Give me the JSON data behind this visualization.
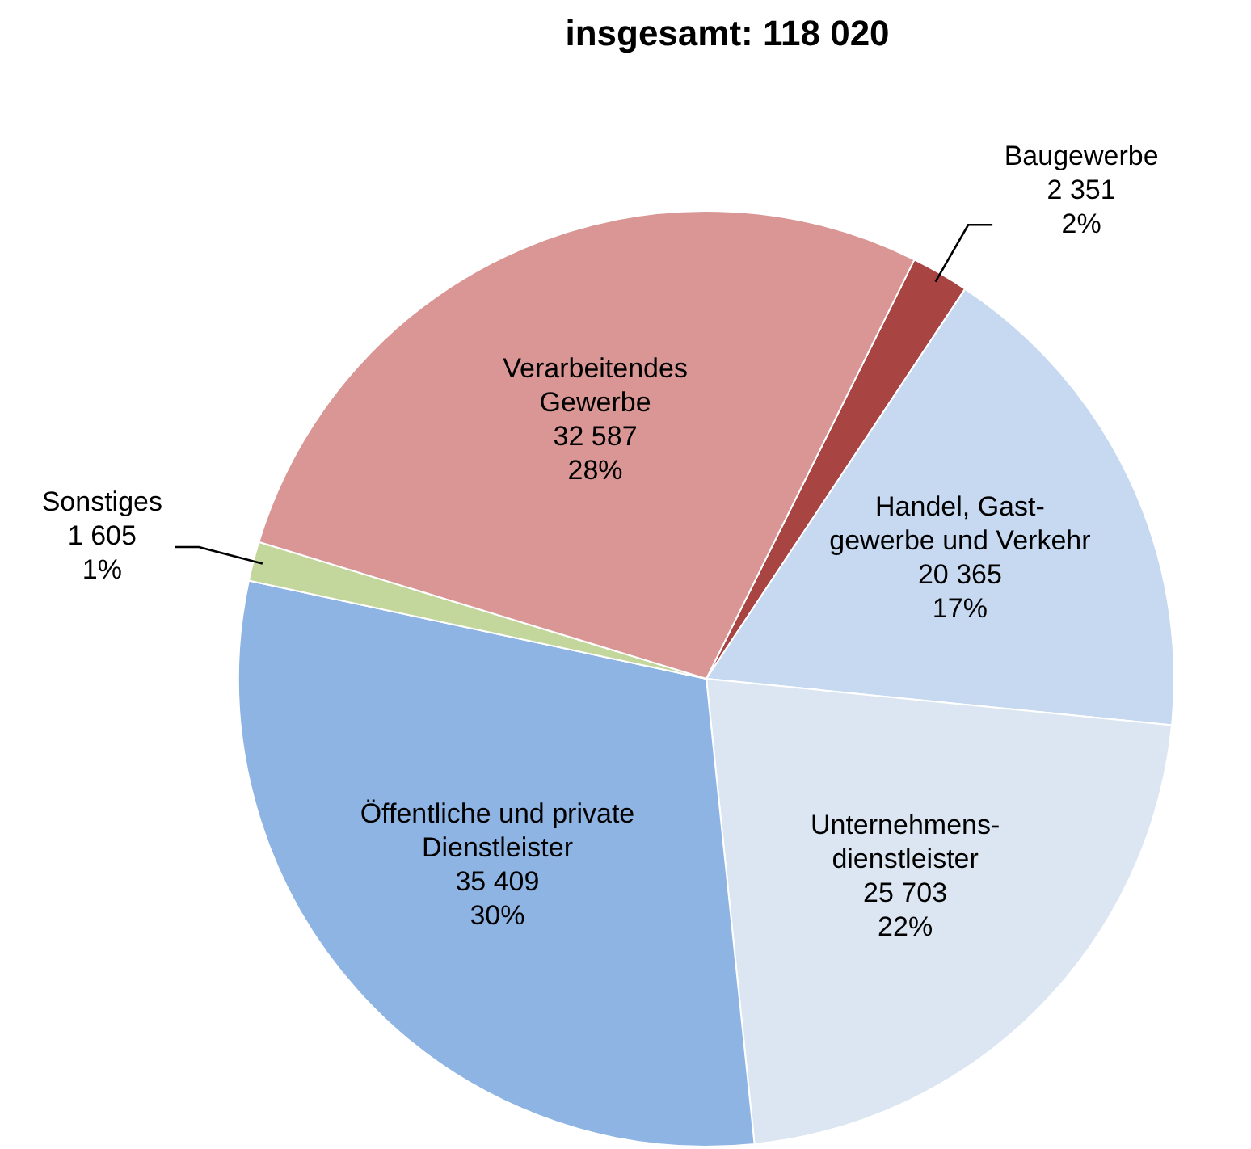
{
  "chart_data": {
    "type": "pie",
    "title": "insgesamt: 118 020",
    "categories": [
      "Baugewerbe",
      "Handel, Gast-\ngewerbe und Verkehr",
      "Unternehmens-\ndienstleister",
      "Öffentliche und private\nDienstleister",
      "Sonstiges",
      "Verarbeitendes\nGewerbe"
    ],
    "values": [
      2351,
      20365,
      25703,
      35409,
      1605,
      32587
    ],
    "colors": [
      "#a84442",
      "#c6d9f1",
      "#dce6f2",
      "#8eb4e3",
      "#c3d69b",
      "#d99694"
    ],
    "value_labels": [
      "2 351\n2%",
      "20 365\n17%",
      "25 703\n22%",
      "35 409\n30%",
      "1 605\n1%",
      "32 587\n28%"
    ],
    "legend": false
  }
}
